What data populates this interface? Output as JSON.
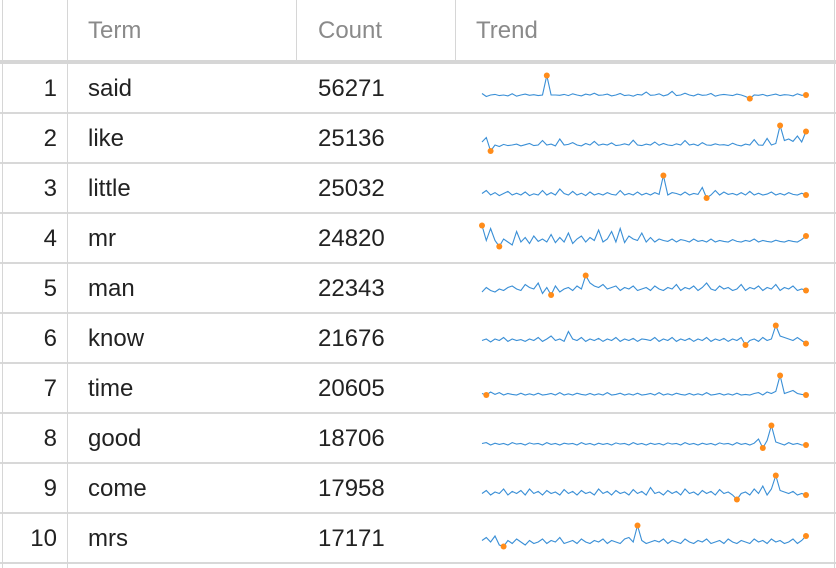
{
  "table": {
    "headers": {
      "index": "",
      "term": "Term",
      "count": "Count",
      "trend": "Trend"
    },
    "rows": [
      {
        "index": "1",
        "term": "said",
        "count": "56271",
        "trend": [
          0.35,
          0.25,
          0.3,
          0.32,
          0.28,
          0.3,
          0.27,
          0.34,
          0.26,
          0.3,
          0.33,
          0.29,
          0.31,
          0.28,
          0.3,
          0.95,
          0.3,
          0.3,
          0.29,
          0.32,
          0.28,
          0.34,
          0.3,
          0.27,
          0.33,
          0.3,
          0.36,
          0.29,
          0.3,
          0.33,
          0.27,
          0.3,
          0.35,
          0.28,
          0.3,
          0.26,
          0.32,
          0.3,
          0.4,
          0.29,
          0.3,
          0.34,
          0.27,
          0.31,
          0.42,
          0.28,
          0.3,
          0.36,
          0.3,
          0.27,
          0.33,
          0.29,
          0.3,
          0.35,
          0.26,
          0.3,
          0.32,
          0.3,
          0.28,
          0.33,
          0.3,
          0.25,
          0.18,
          0.3,
          0.29,
          0.32,
          0.27,
          0.3,
          0.33,
          0.28,
          0.31,
          0.3,
          0.27,
          0.34,
          0.29,
          0.3
        ]
      },
      {
        "index": "2",
        "term": "like",
        "count": "25136",
        "trend": [
          0.4,
          0.55,
          0.1,
          0.3,
          0.25,
          0.32,
          0.28,
          0.3,
          0.33,
          0.27,
          0.31,
          0.35,
          0.28,
          0.3,
          0.45,
          0.3,
          0.33,
          0.27,
          0.5,
          0.3,
          0.32,
          0.38,
          0.3,
          0.27,
          0.35,
          0.3,
          0.42,
          0.29,
          0.33,
          0.3,
          0.37,
          0.28,
          0.3,
          0.34,
          0.3,
          0.46,
          0.3,
          0.28,
          0.33,
          0.3,
          0.4,
          0.29,
          0.35,
          0.3,
          0.28,
          0.34,
          0.3,
          0.45,
          0.3,
          0.33,
          0.28,
          0.38,
          0.3,
          0.29,
          0.34,
          0.3,
          0.31,
          0.28,
          0.36,
          0.3,
          0.27,
          0.33,
          0.3,
          0.48,
          0.3,
          0.29,
          0.52,
          0.3,
          0.35,
          0.95,
          0.45,
          0.5,
          0.42,
          0.6,
          0.4,
          0.75
        ]
      },
      {
        "index": "3",
        "term": "little",
        "count": "25032",
        "trend": [
          0.35,
          0.45,
          0.3,
          0.38,
          0.28,
          0.35,
          0.42,
          0.3,
          0.36,
          0.3,
          0.4,
          0.28,
          0.34,
          0.3,
          0.45,
          0.3,
          0.38,
          0.3,
          0.5,
          0.35,
          0.3,
          0.42,
          0.3,
          0.36,
          0.28,
          0.4,
          0.3,
          0.35,
          0.3,
          0.38,
          0.32,
          0.3,
          0.45,
          0.3,
          0.35,
          0.3,
          0.4,
          0.3,
          0.36,
          0.3,
          0.38,
          0.32,
          0.95,
          0.3,
          0.38,
          0.35,
          0.3,
          0.4,
          0.3,
          0.35,
          0.32,
          0.55,
          0.2,
          0.3,
          0.45,
          0.3,
          0.4,
          0.32,
          0.35,
          0.3,
          0.38,
          0.3,
          0.42,
          0.3,
          0.36,
          0.3,
          0.33,
          0.4,
          0.3,
          0.35,
          0.3,
          0.38,
          0.32,
          0.3,
          0.36,
          0.3
        ]
      },
      {
        "index": "4",
        "term": "mr",
        "count": "24820",
        "trend": [
          0.95,
          0.45,
          0.85,
          0.45,
          0.25,
          0.5,
          0.4,
          0.3,
          0.75,
          0.4,
          0.55,
          0.35,
          0.6,
          0.42,
          0.5,
          0.4,
          0.65,
          0.38,
          0.55,
          0.4,
          0.7,
          0.35,
          0.5,
          0.6,
          0.4,
          0.55,
          0.45,
          0.8,
          0.4,
          0.5,
          0.75,
          0.4,
          0.85,
          0.38,
          0.6,
          0.5,
          0.45,
          0.7,
          0.4,
          0.55,
          0.4,
          0.5,
          0.45,
          0.42,
          0.5,
          0.4,
          0.48,
          0.45,
          0.4,
          0.5,
          0.42,
          0.45,
          0.4,
          0.5,
          0.4,
          0.45,
          0.42,
          0.4,
          0.48,
          0.42,
          0.4,
          0.45,
          0.42,
          0.5,
          0.4,
          0.45,
          0.42,
          0.4,
          0.46,
          0.42,
          0.4,
          0.45,
          0.42,
          0.4,
          0.48,
          0.6
        ]
      },
      {
        "index": "5",
        "term": "man",
        "count": "22343",
        "trend": [
          0.4,
          0.55,
          0.45,
          0.4,
          0.5,
          0.45,
          0.55,
          0.6,
          0.5,
          0.45,
          0.65,
          0.55,
          0.5,
          0.7,
          0.35,
          0.55,
          0.3,
          0.6,
          0.4,
          0.5,
          0.55,
          0.45,
          0.6,
          0.5,
          0.95,
          0.7,
          0.6,
          0.55,
          0.65,
          0.5,
          0.55,
          0.6,
          0.45,
          0.55,
          0.5,
          0.6,
          0.45,
          0.5,
          0.55,
          0.45,
          0.6,
          0.5,
          0.45,
          0.55,
          0.5,
          0.65,
          0.45,
          0.55,
          0.5,
          0.6,
          0.45,
          0.55,
          0.7,
          0.5,
          0.45,
          0.6,
          0.5,
          0.55,
          0.45,
          0.5,
          0.65,
          0.45,
          0.55,
          0.5,
          0.6,
          0.45,
          0.55,
          0.5,
          0.65,
          0.45,
          0.55,
          0.5,
          0.6,
          0.45,
          0.5,
          0.45
        ]
      },
      {
        "index": "6",
        "term": "know",
        "count": "21676",
        "trend": [
          0.45,
          0.5,
          0.4,
          0.5,
          0.45,
          0.55,
          0.42,
          0.5,
          0.45,
          0.48,
          0.42,
          0.5,
          0.45,
          0.55,
          0.42,
          0.5,
          0.6,
          0.45,
          0.5,
          0.42,
          0.75,
          0.5,
          0.45,
          0.55,
          0.42,
          0.5,
          0.45,
          0.52,
          0.42,
          0.5,
          0.45,
          0.55,
          0.42,
          0.5,
          0.45,
          0.52,
          0.42,
          0.5,
          0.48,
          0.45,
          0.55,
          0.42,
          0.5,
          0.45,
          0.55,
          0.42,
          0.5,
          0.45,
          0.52,
          0.42,
          0.5,
          0.45,
          0.55,
          0.42,
          0.5,
          0.45,
          0.52,
          0.42,
          0.5,
          0.45,
          0.55,
          0.3,
          0.45,
          0.5,
          0.42,
          0.55,
          0.45,
          0.5,
          0.95,
          0.6,
          0.55,
          0.5,
          0.45,
          0.55,
          0.45,
          0.35
        ]
      },
      {
        "index": "7",
        "term": "time",
        "count": "20605",
        "trend": [
          0.35,
          0.3,
          0.4,
          0.32,
          0.38,
          0.3,
          0.35,
          0.32,
          0.3,
          0.36,
          0.3,
          0.34,
          0.3,
          0.36,
          0.3,
          0.32,
          0.35,
          0.3,
          0.38,
          0.3,
          0.34,
          0.3,
          0.36,
          0.32,
          0.3,
          0.35,
          0.3,
          0.34,
          0.3,
          0.38,
          0.3,
          0.32,
          0.36,
          0.3,
          0.34,
          0.3,
          0.36,
          0.3,
          0.32,
          0.35,
          0.3,
          0.38,
          0.3,
          0.34,
          0.3,
          0.36,
          0.32,
          0.3,
          0.35,
          0.3,
          0.34,
          0.3,
          0.38,
          0.3,
          0.32,
          0.35,
          0.3,
          0.34,
          0.3,
          0.36,
          0.3,
          0.32,
          0.3,
          0.35,
          0.38,
          0.3,
          0.4,
          0.35,
          0.42,
          0.95,
          0.35,
          0.4,
          0.45,
          0.35,
          0.32,
          0.3
        ]
      },
      {
        "index": "8",
        "term": "good",
        "count": "18706",
        "trend": [
          0.35,
          0.38,
          0.3,
          0.36,
          0.32,
          0.35,
          0.3,
          0.38,
          0.33,
          0.35,
          0.3,
          0.37,
          0.33,
          0.35,
          0.3,
          0.38,
          0.32,
          0.35,
          0.3,
          0.36,
          0.33,
          0.35,
          0.3,
          0.38,
          0.32,
          0.35,
          0.3,
          0.36,
          0.32,
          0.35,
          0.3,
          0.37,
          0.33,
          0.35,
          0.3,
          0.38,
          0.32,
          0.35,
          0.3,
          0.36,
          0.32,
          0.35,
          0.3,
          0.37,
          0.33,
          0.35,
          0.3,
          0.38,
          0.32,
          0.35,
          0.3,
          0.36,
          0.32,
          0.35,
          0.3,
          0.37,
          0.33,
          0.35,
          0.3,
          0.38,
          0.32,
          0.35,
          0.3,
          0.36,
          0.5,
          0.2,
          0.45,
          0.95,
          0.4,
          0.35,
          0.3,
          0.38,
          0.32,
          0.35,
          0.3,
          0.3
        ]
      },
      {
        "index": "9",
        "term": "come",
        "count": "17958",
        "trend": [
          0.35,
          0.45,
          0.3,
          0.4,
          0.35,
          0.5,
          0.3,
          0.42,
          0.35,
          0.45,
          0.3,
          0.5,
          0.35,
          0.42,
          0.3,
          0.45,
          0.35,
          0.4,
          0.3,
          0.48,
          0.35,
          0.42,
          0.3,
          0.45,
          0.35,
          0.4,
          0.3,
          0.5,
          0.35,
          0.42,
          0.3,
          0.45,
          0.35,
          0.4,
          0.3,
          0.48,
          0.35,
          0.42,
          0.3,
          0.55,
          0.35,
          0.4,
          0.3,
          0.45,
          0.35,
          0.42,
          0.3,
          0.5,
          0.35,
          0.4,
          0.3,
          0.45,
          0.35,
          0.42,
          0.3,
          0.48,
          0.35,
          0.4,
          0.3,
          0.15,
          0.35,
          0.4,
          0.3,
          0.5,
          0.35,
          0.6,
          0.3,
          0.5,
          0.95,
          0.45,
          0.4,
          0.35,
          0.42,
          0.3,
          0.35,
          0.3
        ]
      },
      {
        "index": "10",
        "term": "mrs",
        "count": "17171",
        "trend": [
          0.45,
          0.55,
          0.4,
          0.6,
          0.3,
          0.25,
          0.45,
          0.35,
          0.5,
          0.4,
          0.3,
          0.45,
          0.35,
          0.4,
          0.5,
          0.35,
          0.45,
          0.4,
          0.55,
          0.35,
          0.4,
          0.45,
          0.35,
          0.5,
          0.4,
          0.35,
          0.45,
          0.4,
          0.5,
          0.35,
          0.45,
          0.4,
          0.35,
          0.5,
          0.55,
          0.4,
          0.95,
          0.45,
          0.35,
          0.4,
          0.45,
          0.4,
          0.5,
          0.35,
          0.45,
          0.4,
          0.35,
          0.5,
          0.4,
          0.35,
          0.45,
          0.4,
          0.5,
          0.35,
          0.4,
          0.45,
          0.35,
          0.5,
          0.4,
          0.35,
          0.45,
          0.4,
          0.35,
          0.5,
          0.4,
          0.45,
          0.35,
          0.5,
          0.4,
          0.45,
          0.35,
          0.4,
          0.5,
          0.35,
          0.45,
          0.6
        ]
      }
    ]
  },
  "colors": {
    "sparkline": "#3a8fd6",
    "marker": "#ff8c1a",
    "grid": "#d6d6d6",
    "header_text": "#8a8a8a"
  }
}
